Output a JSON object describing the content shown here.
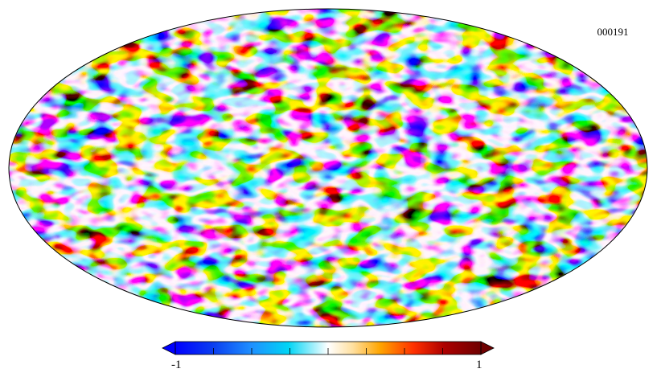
{
  "map": {
    "projection": "mollweide",
    "map_id": "000191",
    "colormap": [
      "#0000ff",
      "#0a3cf0",
      "#1e90ff",
      "#00d5f5",
      "#ffffff",
      "#ffe0a0",
      "#ffa500",
      "#ff3000",
      "#ad0000",
      "#6e0000"
    ],
    "border_color": "#000000"
  },
  "colorbar": {
    "min_label": "-1",
    "max_label": "1",
    "min_value": -1,
    "max_value": 1,
    "tick_count": 9
  }
}
